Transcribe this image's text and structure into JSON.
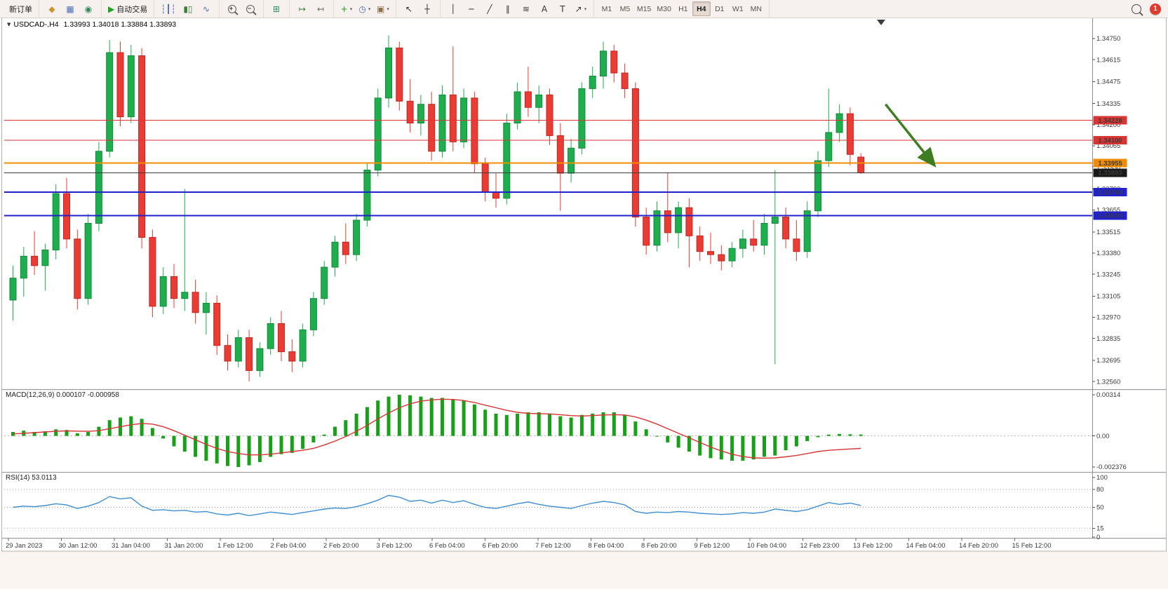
{
  "toolbar": {
    "notification_count": "1",
    "groups": [
      {
        "name": "order-group",
        "items": [
          {
            "name": "new-order-button",
            "label": "新订单"
          }
        ]
      },
      {
        "name": "windows-group",
        "items": [
          {
            "name": "market-watch-icon",
            "glyph": "◆",
            "color": "#c8972f"
          },
          {
            "name": "data-window-icon",
            "glyph": "▦",
            "color": "#4a6fb5"
          },
          {
            "name": "web-globe-icon",
            "glyph": "◉",
            "color": "#2f8b57"
          }
        ]
      },
      {
        "name": "autotrade-group",
        "items": [
          {
            "name": "auto-trading-button",
            "glyph": "▶",
            "color": "#21a121",
            "label": "自动交易"
          }
        ]
      },
      {
        "name": "chart-type-group",
        "items": [
          {
            "name": "ohlc-bars-icon",
            "glyph": "┆┃┆",
            "color": "#4a6fb5"
          },
          {
            "name": "candlestick-chart-icon",
            "glyph": "▮▯",
            "color": "#3a7d3a"
          },
          {
            "name": "line-chart-icon",
            "glyph": "∿",
            "color": "#4a6fb5"
          }
        ]
      },
      {
        "name": "zoom-group",
        "items": [
          {
            "name": "zoom-in-icon",
            "shape": "magnifier",
            "badge": "+"
          },
          {
            "name": "zoom-out-icon",
            "shape": "magnifier",
            "badge": "−"
          }
        ]
      },
      {
        "name": "layout-group",
        "items": [
          {
            "name": "tile-windows-icon",
            "glyph": "⊞",
            "color": "#2f8b57"
          }
        ]
      },
      {
        "name": "scroll-group",
        "items": [
          {
            "name": "auto-scroll-icon",
            "glyph": "↦",
            "color": "#3a7d3a"
          },
          {
            "name": "chart-shift-icon",
            "glyph": "↤",
            "color": "#6a6a6a"
          }
        ]
      },
      {
        "name": "insert-group",
        "items": [
          {
            "name": "indicators-icon",
            "glyph": "+",
            "color": "#18a018",
            "caret": true
          },
          {
            "name": "periods-icon",
            "glyph": "◷",
            "color": "#4a6fb5",
            "caret": true
          },
          {
            "name": "templates-icon",
            "glyph": "▣",
            "color": "#8a6f4a",
            "caret": true
          }
        ]
      },
      {
        "name": "pointer-group",
        "items": [
          {
            "name": "cursor-icon",
            "glyph": "↖",
            "color": "#333333"
          },
          {
            "name": "crosshair-icon",
            "glyph": "┼",
            "color": "#333333"
          }
        ]
      },
      {
        "name": "objects-group",
        "items": [
          {
            "name": "vertical-line-icon",
            "glyph": "│",
            "color": "#333333"
          },
          {
            "name": "horizontal-line-icon",
            "glyph": "─",
            "color": "#333333"
          },
          {
            "name": "trendline-icon",
            "glyph": "╱",
            "color": "#333333"
          },
          {
            "name": "channel-icon",
            "glyph": "∥",
            "color": "#333333"
          },
          {
            "name": "fibonacci-icon",
            "glyph": "≋",
            "color": "#333333"
          },
          {
            "name": "text-icon",
            "glyph": "A",
            "color": "#333333"
          },
          {
            "name": "label-icon",
            "glyph": "T",
            "color": "#333333"
          },
          {
            "name": "arrows-icon",
            "glyph": "↗",
            "color": "#333333",
            "caret": true
          }
        ]
      },
      {
        "name": "timeframe-group",
        "items": [
          {
            "name": "timeframe-m1-button",
            "label": "M1"
          },
          {
            "name": "timeframe-m5-button",
            "label": "M5"
          },
          {
            "name": "timeframe-m15-button",
            "label": "M15"
          },
          {
            "name": "timeframe-m30-button",
            "label": "M30"
          },
          {
            "name": "timeframe-h1-button",
            "label": "H1"
          },
          {
            "name": "timeframe-h4-button",
            "label": "H4",
            "active": true
          },
          {
            "name": "timeframe-d1-button",
            "label": "D1"
          },
          {
            "name": "timeframe-w1-button",
            "label": "W1"
          },
          {
            "name": "timeframe-mn-button",
            "label": "MN"
          }
        ]
      }
    ]
  },
  "chart": {
    "collapse_glyph": "▼",
    "symbol_period": "USDCAD-,H4",
    "ohlc_text": "1.33993 1.34018 1.33884 1.33893"
  },
  "chart_data": {
    "type": "candlestick",
    "symbol": "USDCAD",
    "period": "H4",
    "ohlc_display": {
      "open": "1.33993",
      "high": "1.34018",
      "low": "1.33884",
      "close": "1.33893"
    },
    "colors": {
      "up": "#1fae4d",
      "up_stroke": "#128a3a",
      "down": "#ea3b34",
      "down_stroke": "#c1271f"
    },
    "price_range": {
      "top": 1.3479,
      "bottom": 1.3252
    },
    "price_axis_labels": [
      "1.34750",
      "1.34615",
      "1.34475",
      "1.34335",
      "1.34200",
      "1.34065",
      "1.33930",
      "1.33790",
      "1.33655",
      "1.33515",
      "1.33380",
      "1.33245",
      "1.33105",
      "1.32970",
      "1.32835",
      "1.32695",
      "1.32560"
    ],
    "candles": [
      [
        1.3308,
        1.333,
        1.3295,
        1.3322
      ],
      [
        1.3322,
        1.3342,
        1.331,
        1.3336
      ],
      [
        1.3336,
        1.3352,
        1.3324,
        1.333
      ],
      [
        1.333,
        1.3344,
        1.3314,
        1.334
      ],
      [
        1.334,
        1.3382,
        1.3334,
        1.3376
      ],
      [
        1.3376,
        1.3386,
        1.3341,
        1.3347
      ],
      [
        1.3347,
        1.3353,
        1.3302,
        1.3309
      ],
      [
        1.3309,
        1.3363,
        1.3305,
        1.3357
      ],
      [
        1.3357,
        1.3409,
        1.3352,
        1.3403
      ],
      [
        1.3403,
        1.3474,
        1.3399,
        1.3466
      ],
      [
        1.3466,
        1.3473,
        1.3419,
        1.3425
      ],
      [
        1.3425,
        1.3471,
        1.3421,
        1.3464
      ],
      [
        1.3464,
        1.3469,
        1.3341,
        1.3348
      ],
      [
        1.3348,
        1.3353,
        1.3297,
        1.3304
      ],
      [
        1.3304,
        1.3329,
        1.3299,
        1.3323
      ],
      [
        1.3323,
        1.3331,
        1.3303,
        1.3309
      ],
      [
        1.3309,
        1.3379,
        1.3301,
        1.3313
      ],
      [
        1.3313,
        1.3321,
        1.3293,
        1.33
      ],
      [
        1.33,
        1.3313,
        1.3286,
        1.3306
      ],
      [
        1.3306,
        1.3311,
        1.3273,
        1.3279
      ],
      [
        1.3279,
        1.3286,
        1.3263,
        1.3269
      ],
      [
        1.3269,
        1.3289,
        1.3265,
        1.3284
      ],
      [
        1.3284,
        1.3289,
        1.3256,
        1.3263
      ],
      [
        1.3263,
        1.3281,
        1.3259,
        1.3277
      ],
      [
        1.3277,
        1.3297,
        1.3273,
        1.3293
      ],
      [
        1.3293,
        1.3301,
        1.3269,
        1.3275
      ],
      [
        1.3275,
        1.3283,
        1.3262,
        1.3269
      ],
      [
        1.3269,
        1.3293,
        1.3265,
        1.3289
      ],
      [
        1.3289,
        1.3313,
        1.3285,
        1.3309
      ],
      [
        1.3309,
        1.3333,
        1.3305,
        1.3329
      ],
      [
        1.3329,
        1.3349,
        1.3323,
        1.3345
      ],
      [
        1.3345,
        1.3357,
        1.3331,
        1.3337
      ],
      [
        1.3337,
        1.3363,
        1.3333,
        1.3359
      ],
      [
        1.3359,
        1.3396,
        1.3355,
        1.3391
      ],
      [
        1.3391,
        1.3443,
        1.3387,
        1.3437
      ],
      [
        1.3437,
        1.3477,
        1.3431,
        1.3469
      ],
      [
        1.3469,
        1.3473,
        1.3429,
        1.3435
      ],
      [
        1.3435,
        1.3449,
        1.3415,
        1.3421
      ],
      [
        1.3421,
        1.3439,
        1.3413,
        1.3433
      ],
      [
        1.3433,
        1.3441,
        1.3397,
        1.3403
      ],
      [
        1.3403,
        1.3445,
        1.3399,
        1.3439
      ],
      [
        1.3439,
        1.347,
        1.3403,
        1.3409
      ],
      [
        1.3409,
        1.3443,
        1.3405,
        1.3437
      ],
      [
        1.3437,
        1.3441,
        1.3389,
        1.3395
      ],
      [
        1.3395,
        1.3399,
        1.3371,
        1.3377
      ],
      [
        1.3377,
        1.3389,
        1.3367,
        1.3373
      ],
      [
        1.3373,
        1.3427,
        1.3369,
        1.3421
      ],
      [
        1.3421,
        1.3447,
        1.3417,
        1.3441
      ],
      [
        1.3441,
        1.3457,
        1.3425,
        1.3431
      ],
      [
        1.3431,
        1.3445,
        1.3421,
        1.3439
      ],
      [
        1.3439,
        1.3443,
        1.3407,
        1.3413
      ],
      [
        1.3413,
        1.3421,
        1.3365,
        1.3389
      ],
      [
        1.3389,
        1.3411,
        1.3383,
        1.3405
      ],
      [
        1.3405,
        1.3447,
        1.3401,
        1.3443
      ],
      [
        1.3443,
        1.3457,
        1.3437,
        1.3451
      ],
      [
        1.3451,
        1.3473,
        1.3443,
        1.3467
      ],
      [
        1.3467,
        1.3471,
        1.3447,
        1.3453
      ],
      [
        1.3453,
        1.3459,
        1.3437,
        1.3443
      ],
      [
        1.3443,
        1.3447,
        1.3355,
        1.3361
      ],
      [
        1.3361,
        1.3367,
        1.3337,
        1.3343
      ],
      [
        1.3343,
        1.3371,
        1.3339,
        1.3365
      ],
      [
        1.3365,
        1.3389,
        1.3345,
        1.3351
      ],
      [
        1.3351,
        1.3371,
        1.3341,
        1.3367
      ],
      [
        1.3367,
        1.3373,
        1.3329,
        1.3349
      ],
      [
        1.3349,
        1.3355,
        1.3333,
        1.3339
      ],
      [
        1.3339,
        1.3351,
        1.3331,
        1.3337
      ],
      [
        1.3337,
        1.3343,
        1.3327,
        1.3333
      ],
      [
        1.3333,
        1.3345,
        1.3329,
        1.3341
      ],
      [
        1.3341,
        1.3353,
        1.3335,
        1.3347
      ],
      [
        1.3347,
        1.3359,
        1.3339,
        1.3343
      ],
      [
        1.3343,
        1.3363,
        1.3337,
        1.3357
      ],
      [
        1.3357,
        1.3391,
        1.3267,
        1.3361
      ],
      [
        1.3361,
        1.3367,
        1.3341,
        1.3347
      ],
      [
        1.3347,
        1.3359,
        1.3333,
        1.3339
      ],
      [
        1.3339,
        1.3371,
        1.3335,
        1.3365
      ],
      [
        1.3365,
        1.3403,
        1.3361,
        1.3397
      ],
      [
        1.3397,
        1.3443,
        1.3393,
        1.3415
      ],
      [
        1.3415,
        1.3433,
        1.3409,
        1.3427
      ],
      [
        1.3427,
        1.3431,
        1.3394,
        1.3401
      ],
      [
        1.33993,
        1.34018,
        1.33884,
        1.33893
      ]
    ],
    "hlines": [
      {
        "price": 1.34228,
        "color": "#e03434",
        "width": 1,
        "label": "1.34228",
        "label_bg": "#d83434"
      },
      {
        "price": 1.341,
        "color": "#e03434",
        "width": 1,
        "label": "1.34100",
        "label_bg": "#d83434"
      },
      {
        "price": 1.33955,
        "color": "#f08c00",
        "width": 2,
        "label": "1.33955",
        "label_bg": "#f08c00"
      },
      {
        "price": 1.33893,
        "color": "#3c3c3c",
        "width": 1,
        "label": "1.33893",
        "label_bg": "#1a1a1a"
      },
      {
        "price": 1.33769,
        "color": "#2222cc",
        "width": 2,
        "label": "1.33769",
        "label_bg": "#2222cc"
      },
      {
        "price": 1.3362,
        "color": "#2222cc",
        "width": 2,
        "label": "1.33620",
        "label_bg": "#2222cc"
      }
    ],
    "arrow": {
      "color": "#3f7d22",
      "width": 3.5,
      "from": {
        "bar": 81.3,
        "price": 1.3433
      },
      "to": {
        "bar": 85.8,
        "price": 1.33945
      }
    },
    "time_labels": [
      "29 Jan 2023",
      "30 Jan 12:00",
      "31 Jan 04:00",
      "31 Jan 20:00",
      "1 Feb 12:00",
      "2 Feb 04:00",
      "2 Feb 20:00",
      "3 Feb 12:00",
      "6 Feb 04:00",
      "6 Feb 20:00",
      "7 Feb 12:00",
      "8 Feb 04:00",
      "8 Feb 20:00",
      "9 Feb 12:00",
      "10 Feb 04:00",
      "12 Feb 23:00",
      "13 Feb 12:00",
      "14 Feb 04:00",
      "14 Feb 20:00",
      "15 Feb 12:00"
    ],
    "macd": {
      "label": "MACD(12,26,9)",
      "values_text": "0.000107 -0.000958",
      "axis_labels": [
        {
          "v": 0.00314,
          "t": "0.00314"
        },
        {
          "v": 0,
          "t": "0.00"
        },
        {
          "v": -0.002376,
          "t": "-0.002376"
        }
      ],
      "scale": {
        "max": 0.00314,
        "min": -0.002376
      },
      "units": 0.001,
      "hist_color": "#18a018",
      "signal_color": "#d83434",
      "histogram": [
        0.3,
        0.4,
        0.3,
        0.35,
        0.5,
        0.45,
        0.2,
        0.3,
        0.7,
        1.2,
        1.4,
        1.5,
        1.3,
        0.6,
        -0.2,
        -0.8,
        -1.2,
        -1.6,
        -1.9,
        -2.1,
        -2.3,
        -2.376,
        -2.25,
        -2.0,
        -1.6,
        -1.4,
        -1.3,
        -1.0,
        -0.5,
        0.1,
        0.7,
        1.2,
        1.7,
        2.2,
        2.7,
        3.0,
        3.14,
        3.1,
        3.0,
        2.9,
        2.9,
        2.8,
        2.7,
        2.4,
        2.0,
        1.7,
        1.6,
        1.7,
        1.8,
        1.8,
        1.7,
        1.5,
        1.4,
        1.6,
        1.7,
        1.8,
        1.8,
        1.6,
        1.1,
        0.5,
        0.0,
        -0.5,
        -0.9,
        -1.2,
        -1.5,
        -1.7,
        -1.8,
        -1.9,
        -1.9,
        -1.8,
        -1.6,
        -1.5,
        -1.1,
        -0.8,
        -0.4,
        -0.1,
        0.1,
        0.15,
        0.12,
        0.107
      ],
      "signal": [
        0.15,
        0.2,
        0.25,
        0.3,
        0.35,
        0.38,
        0.36,
        0.35,
        0.4,
        0.55,
        0.7,
        0.85,
        0.95,
        0.9,
        0.7,
        0.4,
        0.05,
        -0.3,
        -0.65,
        -0.95,
        -1.2,
        -1.35,
        -1.45,
        -1.45,
        -1.4,
        -1.3,
        -1.2,
        -1.1,
        -0.95,
        -0.7,
        -0.4,
        -0.05,
        0.35,
        0.8,
        1.3,
        1.75,
        2.15,
        2.45,
        2.65,
        2.75,
        2.8,
        2.78,
        2.7,
        2.55,
        2.35,
        2.15,
        1.95,
        1.8,
        1.72,
        1.7,
        1.68,
        1.62,
        1.55,
        1.52,
        1.55,
        1.6,
        1.62,
        1.6,
        1.45,
        1.2,
        0.9,
        0.55,
        0.2,
        -0.15,
        -0.5,
        -0.85,
        -1.15,
        -1.4,
        -1.58,
        -1.68,
        -1.7,
        -1.68,
        -1.6,
        -1.5,
        -1.35,
        -1.2,
        -1.1,
        -1.05,
        -1.0,
        -0.958
      ]
    },
    "rsi": {
      "label": "RSI(14)",
      "value_text": "53.0113",
      "color": "#3f8fd0",
      "axis_labels": [
        {
          "v": 100,
          "t": "100"
        },
        {
          "v": 80,
          "t": "80"
        },
        {
          "v": 50,
          "t": "50"
        },
        {
          "v": 15,
          "t": "15"
        },
        {
          "v": 0,
          "t": "0"
        }
      ],
      "levels": [
        80,
        50,
        15
      ],
      "values": [
        50,
        52,
        51,
        53,
        56,
        54,
        48,
        52,
        58,
        68,
        64,
        66,
        52,
        45,
        46,
        44,
        45,
        42,
        43,
        39,
        37,
        40,
        36,
        39,
        42,
        40,
        38,
        41,
        44,
        47,
        49,
        48,
        51,
        56,
        62,
        70,
        67,
        60,
        62,
        57,
        62,
        58,
        61,
        55,
        50,
        48,
        52,
        56,
        59,
        55,
        52,
        50,
        48,
        53,
        57,
        60,
        58,
        54,
        43,
        40,
        42,
        41,
        43,
        42,
        40,
        39,
        38,
        39,
        41,
        40,
        42,
        47,
        45,
        43,
        46,
        52,
        58,
        55,
        57,
        53.0113
      ]
    }
  }
}
